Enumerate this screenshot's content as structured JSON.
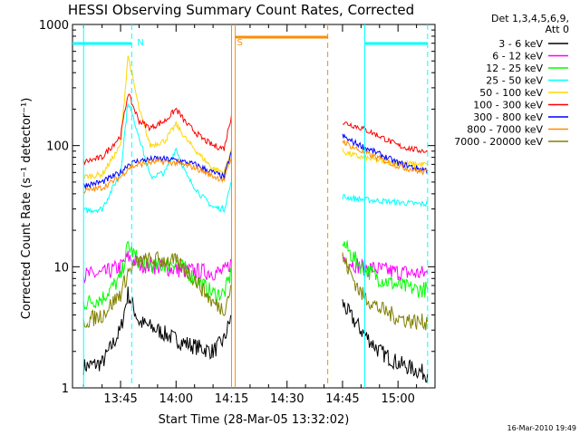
{
  "chart_data": {
    "type": "line",
    "title": "HESSI Observing Summary Count Rates, Corrected",
    "xlabel": "Start Time (28-Mar-05 13:32:02)",
    "ylabel": "Corrected Count Rate (s⁻¹ detector⁻¹)",
    "y_scale": "log",
    "ylim": [
      1,
      1000
    ],
    "xlim": [
      "13:32",
      "15:10"
    ],
    "x_ticks": [
      "13:45",
      "14:00",
      "14:15",
      "14:30",
      "14:45",
      "15:00"
    ],
    "y_ticks": [
      "1",
      "10",
      "100",
      "1000"
    ],
    "legend_header": [
      "Det 1,3,4,5,6,9,",
      "Att 0"
    ],
    "legend_placement": "right, outside plot",
    "annotations": [
      {
        "text": "N",
        "x": "13:48",
        "color": "#00ffff"
      },
      {
        "text": "S",
        "x": "14:15",
        "color": "#ff8c00"
      }
    ],
    "markers": {
      "night_bars": [
        {
          "from": "13:32",
          "to": "13:48",
          "color": "#00ffff"
        },
        {
          "from": "14:51",
          "to": "15:08",
          "color": "#00ffff"
        }
      ],
      "saa_bar": {
        "from": "14:16",
        "to": "14:41",
        "color": "#ff8c00"
      },
      "vlines": [
        {
          "x": "13:35",
          "color": "#00ffff",
          "style": "solid"
        },
        {
          "x": "13:48",
          "color": "#00ffff",
          "style": "dashed"
        },
        {
          "x": "14:15",
          "color": "#ff8c00",
          "style": "solid"
        },
        {
          "x": "14:16",
          "color": "#ff8c00",
          "style": "solid"
        },
        {
          "x": "14:41",
          "color": "#ff8c00",
          "style": "dashed"
        },
        {
          "x": "14:51",
          "color": "#00ffff",
          "style": "solid"
        },
        {
          "x": "15:08",
          "color": "#00ffff",
          "style": "dashed"
        }
      ]
    },
    "series": [
      {
        "name": "3 - 6 keV",
        "color": "#000000",
        "x": [
          "13:35",
          "13:40",
          "13:45",
          "13:47",
          "13:50",
          "13:55",
          "14:00",
          "14:05",
          "14:10",
          "14:13",
          "14:15",
          "14:45",
          "14:47",
          "14:50",
          "14:55",
          "15:00",
          "15:05",
          "15:08"
        ],
        "values": [
          1.5,
          1.6,
          3,
          6,
          3.5,
          3,
          2.5,
          2.2,
          2,
          2.5,
          4,
          5,
          4,
          3,
          2,
          1.6,
          1.4,
          1.3
        ]
      },
      {
        "name": "6 - 12 keV",
        "color": "#ff00ff",
        "x": [
          "13:35",
          "13:40",
          "13:45",
          "13:47",
          "13:50",
          "13:55",
          "14:00",
          "14:05",
          "14:10",
          "14:13",
          "14:15",
          "14:45",
          "14:47",
          "14:50",
          "14:55",
          "15:00",
          "15:05",
          "15:08"
        ],
        "values": [
          8.5,
          8.7,
          10,
          12,
          10.5,
          10,
          9.5,
          9.2,
          9,
          9,
          11,
          12,
          11,
          10,
          9.5,
          9,
          8.8,
          8.8
        ]
      },
      {
        "name": "12 - 25 keV",
        "color": "#00ff00",
        "x": [
          "13:35",
          "13:40",
          "13:45",
          "13:47",
          "13:50",
          "13:55",
          "14:00",
          "14:05",
          "14:10",
          "14:13",
          "14:15",
          "14:45",
          "14:47",
          "14:50",
          "14:55",
          "15:00",
          "15:05",
          "15:08"
        ],
        "values": [
          5,
          5.5,
          8,
          15,
          11,
          10,
          11,
          8,
          6,
          6,
          9,
          16,
          13,
          10,
          8,
          7,
          6.5,
          6.5
        ]
      },
      {
        "name": "25 - 50 keV",
        "color": "#00ffff",
        "x": [
          "13:35",
          "13:40",
          "13:45",
          "13:47",
          "13:50",
          "13:53",
          "13:57",
          "14:00",
          "14:03",
          "14:07",
          "14:10",
          "14:13",
          "14:15",
          "14:45",
          "14:47",
          "14:50",
          "14:55",
          "15:00",
          "15:05",
          "15:08"
        ],
        "values": [
          29,
          30,
          60,
          230,
          120,
          55,
          60,
          95,
          55,
          38,
          31,
          30,
          50,
          38,
          37,
          36,
          35,
          34,
          33,
          33
        ]
      },
      {
        "name": "50 - 100 keV",
        "color": "#ffd700",
        "x": [
          "13:35",
          "13:40",
          "13:45",
          "13:47",
          "13:50",
          "13:53",
          "13:57",
          "14:00",
          "14:03",
          "14:07",
          "14:10",
          "14:13",
          "14:15",
          "14:45",
          "14:47",
          "14:50",
          "14:55",
          "15:00",
          "15:05",
          "15:08"
        ],
        "values": [
          55,
          58,
          100,
          560,
          200,
          100,
          110,
          150,
          110,
          80,
          65,
          60,
          95,
          90,
          85,
          80,
          75,
          72,
          70,
          70
        ]
      },
      {
        "name": "100 - 300 keV",
        "color": "#ff0000",
        "x": [
          "13:35",
          "13:40",
          "13:45",
          "13:47",
          "13:50",
          "13:53",
          "13:57",
          "14:00",
          "14:03",
          "14:07",
          "14:10",
          "14:13",
          "14:15",
          "14:45",
          "14:47",
          "14:50",
          "14:55",
          "15:00",
          "15:05",
          "15:08"
        ],
        "values": [
          73,
          80,
          120,
          270,
          160,
          140,
          160,
          200,
          150,
          115,
          100,
          95,
          180,
          155,
          150,
          140,
          120,
          100,
          92,
          90
        ]
      },
      {
        "name": "300 - 800 keV",
        "color": "#0000ff",
        "x": [
          "13:35",
          "13:40",
          "13:45",
          "13:47",
          "13:50",
          "13:55",
          "14:00",
          "14:05",
          "14:10",
          "14:13",
          "14:15",
          "14:45",
          "14:47",
          "14:50",
          "14:55",
          "15:00",
          "15:05",
          "15:08"
        ],
        "values": [
          47,
          50,
          60,
          70,
          75,
          78,
          76,
          70,
          60,
          55,
          90,
          120,
          110,
          100,
          85,
          72,
          65,
          63
        ]
      },
      {
        "name": "800 - 7000 keV",
        "color": "#ff8c00",
        "x": [
          "13:35",
          "13:40",
          "13:45",
          "13:47",
          "13:50",
          "13:55",
          "14:00",
          "14:05",
          "14:10",
          "14:13",
          "14:15",
          "14:45",
          "14:47",
          "14:50",
          "14:55",
          "15:00",
          "15:05",
          "15:08"
        ],
        "values": [
          42,
          45,
          55,
          65,
          70,
          74,
          72,
          66,
          56,
          52,
          80,
          110,
          100,
          90,
          78,
          68,
          62,
          60
        ]
      },
      {
        "name": "7000 - 20000 keV",
        "color": "#808000",
        "x": [
          "13:35",
          "13:40",
          "13:45",
          "13:47",
          "13:50",
          "13:55",
          "14:00",
          "14:05",
          "14:10",
          "14:13",
          "14:15",
          "14:45",
          "14:47",
          "14:50",
          "14:55",
          "15:00",
          "15:05",
          "15:08"
        ],
        "values": [
          3.5,
          4,
          6,
          9,
          11,
          11.5,
          11,
          8,
          5,
          4.5,
          7,
          12,
          9,
          6,
          4.5,
          3.8,
          3.5,
          3.5
        ]
      }
    ]
  },
  "footer": {
    "timestamp": "16-Mar-2010 19:49"
  }
}
